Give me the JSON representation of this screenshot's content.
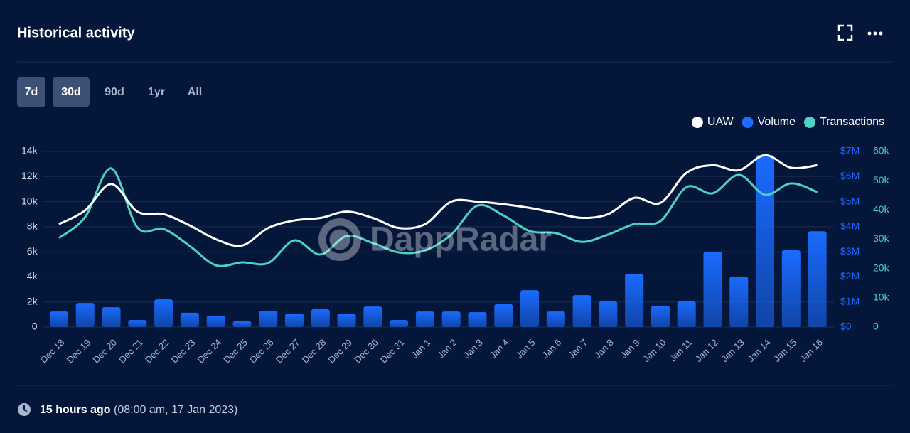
{
  "header": {
    "title": "Historical activity"
  },
  "ranges": [
    "7d",
    "30d",
    "90d",
    "1yr",
    "All"
  ],
  "watermark": "DappRadar",
  "footer": {
    "relative": "15 hours ago",
    "absolute": "(08:00 am, 17 Jan 2023)"
  },
  "chart_data": {
    "type": "combo",
    "categories": [
      "Dec 18",
      "Dec 19",
      "Dec 20",
      "Dec 21",
      "Dec 22",
      "Dec 23",
      "Dec 24",
      "Dec 25",
      "Dec 26",
      "Dec 27",
      "Dec 28",
      "Dec 29",
      "Dec 30",
      "Dec 31",
      "Jan 1",
      "Jan 2",
      "Jan 3",
      "Jan 4",
      "Jan 5",
      "Jan 6",
      "Jan 7",
      "Jan 8",
      "Jan 9",
      "Jan 10",
      "Jan 11",
      "Jan 12",
      "Jan 13",
      "Jan 14",
      "Jan 15",
      "Jan 16"
    ],
    "series": [
      {
        "name": "UAW",
        "type": "line",
        "color": "#ffffff",
        "axis": "y",
        "values": [
          8200,
          9300,
          11400,
          9200,
          9000,
          8100,
          7000,
          6500,
          7900,
          8500,
          8700,
          9200,
          8700,
          7900,
          8200,
          10000,
          10000,
          9800,
          9500,
          9100,
          8700,
          9000,
          10300,
          9900,
          12300,
          12900,
          12500,
          13700,
          12700,
          12900
        ]
      },
      {
        "name": "Volume",
        "type": "bar",
        "color": "#1a6bff",
        "axis": "y2",
        "values": [
          620000,
          960000,
          790000,
          280000,
          1100000,
          570000,
          450000,
          230000,
          650000,
          540000,
          710000,
          540000,
          820000,
          280000,
          620000,
          620000,
          590000,
          910000,
          1470000,
          620000,
          1270000,
          1020000,
          2120000,
          850000,
          1020000,
          3000000,
          2010000,
          6860000,
          3060000,
          3820000
        ]
      },
      {
        "name": "Transactions",
        "type": "line",
        "color": "#4fd1c5",
        "axis": "y3",
        "values": [
          30400,
          37600,
          54200,
          34000,
          33500,
          27700,
          21100,
          22100,
          21900,
          29600,
          24800,
          31100,
          28700,
          25500,
          26200,
          31600,
          41500,
          38100,
          32800,
          32100,
          29100,
          31600,
          35200,
          36200,
          47800,
          45700,
          52000,
          45200,
          49100,
          46100
        ]
      }
    ],
    "ylim": [
      0,
      14000
    ],
    "yticks": [
      0,
      {
        "value": 2000,
        "label": "2k"
      },
      {
        "value": 4000,
        "label": "4k"
      },
      {
        "value": 6000,
        "label": "6k"
      },
      {
        "value": 8000,
        "label": "8k"
      },
      {
        "value": 10000,
        "label": "10k"
      },
      {
        "value": 12000,
        "label": "12k"
      },
      {
        "value": 14000,
        "label": "14k"
      }
    ],
    "y2lim": [
      0,
      7000000
    ],
    "y2ticks": [
      {
        "value": 0,
        "label": "$0"
      },
      {
        "value": 1000000,
        "label": "$1M"
      },
      {
        "value": 2000000,
        "label": "$2M"
      },
      {
        "value": 3000000,
        "label": "$3M"
      },
      {
        "value": 4000000,
        "label": "$4M"
      },
      {
        "value": 5000000,
        "label": "$5M"
      },
      {
        "value": 6000000,
        "label": "$6M"
      },
      {
        "value": 7000000,
        "label": "$7M"
      }
    ],
    "y3lim": [
      0,
      60000
    ],
    "y3ticks": [
      0,
      {
        "value": 10000,
        "label": "10k"
      },
      {
        "value": 20000,
        "label": "20k"
      },
      {
        "value": 30000,
        "label": "30k"
      },
      {
        "value": 40000,
        "label": "40k"
      },
      {
        "value": 50000,
        "label": "50k"
      },
      {
        "value": 60000,
        "label": "60k"
      }
    ],
    "grid": true,
    "legend": "top-right"
  }
}
